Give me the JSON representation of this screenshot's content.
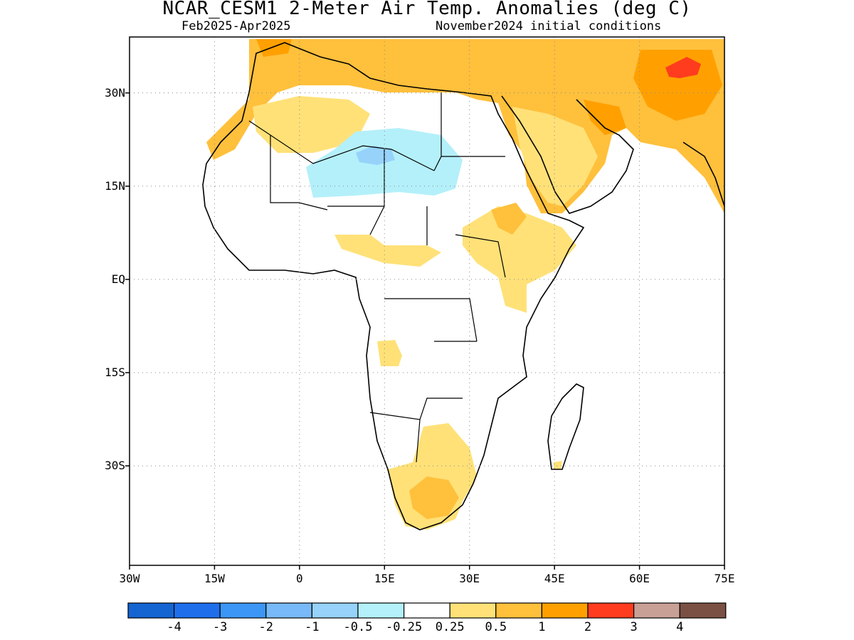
{
  "header": {
    "title": "NCAR_CESM1 2-Meter Air Temp. Anomalies (deg C)",
    "period": "Feb2025-Apr2025",
    "init": "November2024 initial conditions"
  },
  "axes": {
    "lat_labels": [
      "30N",
      "15N",
      "EQ",
      "15S",
      "30S"
    ],
    "lon_labels": [
      "30W",
      "15W",
      "0",
      "15E",
      "30E",
      "45E",
      "60E",
      "75E"
    ],
    "lon_range": [
      -30,
      75
    ],
    "lat_range": [
      -46,
      39
    ],
    "grid": "dotted"
  },
  "colorbar": {
    "colors": [
      "#1464d2",
      "#1e6eeb",
      "#3c96f5",
      "#78b9fa",
      "#96d2fa",
      "#b4f0fa",
      "#ffffff",
      "#ffe178",
      "#ffc03c",
      "#ffa000",
      "#ff3c1e",
      "#c8a096",
      "#7a5044"
    ],
    "labels": [
      "-4",
      "-3",
      "-2",
      "-1",
      "-0.5",
      "-0.25",
      "0.25",
      "0.5",
      "1",
      "2",
      "3",
      "4"
    ]
  }
}
